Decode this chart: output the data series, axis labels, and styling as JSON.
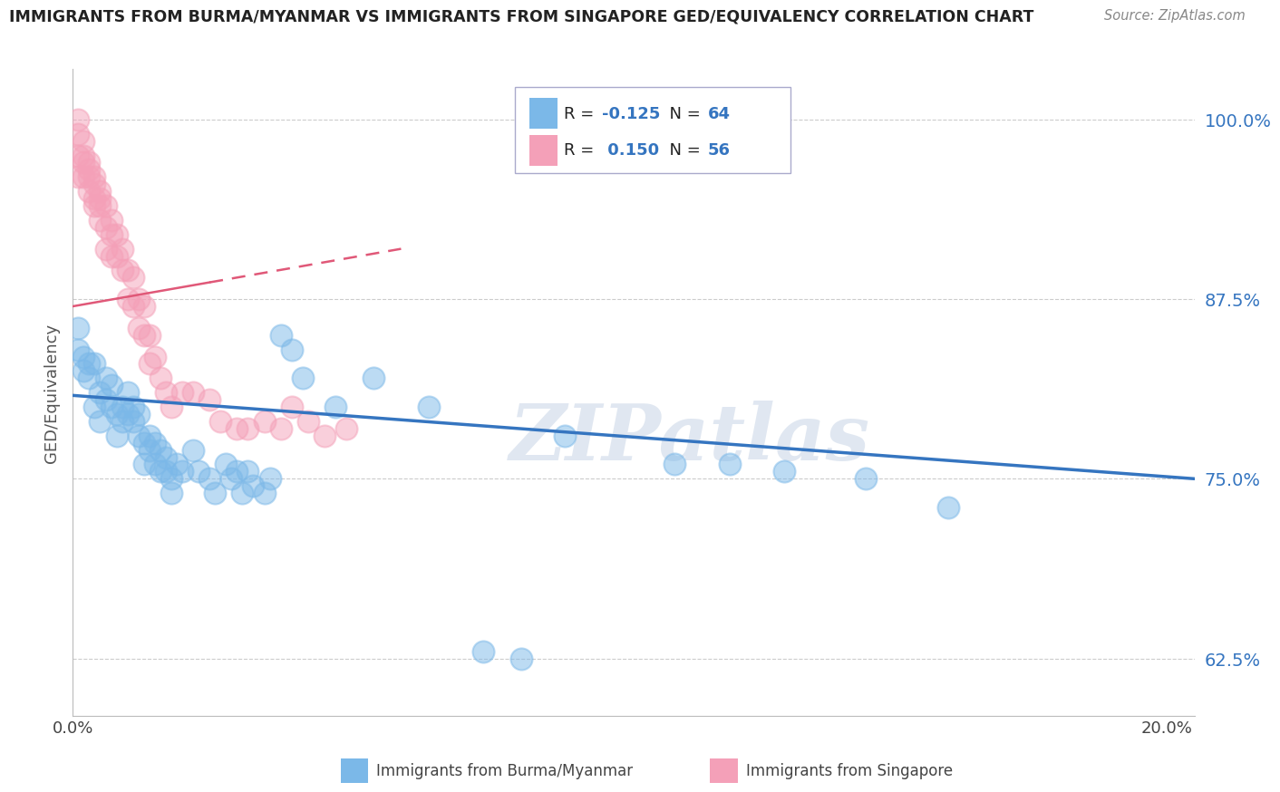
{
  "title": "IMMIGRANTS FROM BURMA/MYANMAR VS IMMIGRANTS FROM SINGAPORE GED/EQUIVALENCY CORRELATION CHART",
  "source": "Source: ZipAtlas.com",
  "ylabel": "GED/Equivalency",
  "y_ticks": [
    0.625,
    0.75,
    0.875,
    1.0
  ],
  "y_tick_labels": [
    "62.5%",
    "75.0%",
    "87.5%",
    "100.0%"
  ],
  "xlim": [
    0.0,
    0.205
  ],
  "ylim": [
    0.585,
    1.035
  ],
  "legend_xlabel_blue": "Immigrants from Burma/Myanmar",
  "legend_xlabel_pink": "Immigrants from Singapore",
  "blue_scatter": [
    [
      0.001,
      0.84
    ],
    [
      0.001,
      0.855
    ],
    [
      0.002,
      0.835
    ],
    [
      0.002,
      0.825
    ],
    [
      0.003,
      0.83
    ],
    [
      0.003,
      0.82
    ],
    [
      0.004,
      0.83
    ],
    [
      0.004,
      0.8
    ],
    [
      0.005,
      0.79
    ],
    [
      0.005,
      0.81
    ],
    [
      0.006,
      0.805
    ],
    [
      0.006,
      0.82
    ],
    [
      0.007,
      0.8
    ],
    [
      0.007,
      0.815
    ],
    [
      0.008,
      0.795
    ],
    [
      0.008,
      0.78
    ],
    [
      0.009,
      0.79
    ],
    [
      0.009,
      0.8
    ],
    [
      0.01,
      0.81
    ],
    [
      0.01,
      0.795
    ],
    [
      0.011,
      0.8
    ],
    [
      0.011,
      0.79
    ],
    [
      0.012,
      0.78
    ],
    [
      0.012,
      0.795
    ],
    [
      0.013,
      0.76
    ],
    [
      0.013,
      0.775
    ],
    [
      0.014,
      0.78
    ],
    [
      0.014,
      0.77
    ],
    [
      0.015,
      0.76
    ],
    [
      0.015,
      0.775
    ],
    [
      0.016,
      0.755
    ],
    [
      0.016,
      0.77
    ],
    [
      0.017,
      0.765
    ],
    [
      0.017,
      0.755
    ],
    [
      0.018,
      0.75
    ],
    [
      0.018,
      0.74
    ],
    [
      0.019,
      0.76
    ],
    [
      0.02,
      0.755
    ],
    [
      0.022,
      0.77
    ],
    [
      0.023,
      0.755
    ],
    [
      0.025,
      0.75
    ],
    [
      0.026,
      0.74
    ],
    [
      0.028,
      0.76
    ],
    [
      0.029,
      0.75
    ],
    [
      0.03,
      0.755
    ],
    [
      0.031,
      0.74
    ],
    [
      0.032,
      0.755
    ],
    [
      0.033,
      0.745
    ],
    [
      0.035,
      0.74
    ],
    [
      0.036,
      0.75
    ],
    [
      0.038,
      0.85
    ],
    [
      0.04,
      0.84
    ],
    [
      0.042,
      0.82
    ],
    [
      0.048,
      0.8
    ],
    [
      0.055,
      0.82
    ],
    [
      0.065,
      0.8
    ],
    [
      0.075,
      0.63
    ],
    [
      0.082,
      0.625
    ],
    [
      0.09,
      0.78
    ],
    [
      0.11,
      0.76
    ],
    [
      0.12,
      0.76
    ],
    [
      0.13,
      0.755
    ],
    [
      0.145,
      0.75
    ],
    [
      0.16,
      0.73
    ]
  ],
  "pink_scatter": [
    [
      0.001,
      0.99
    ],
    [
      0.001,
      1.0
    ],
    [
      0.001,
      0.975
    ],
    [
      0.001,
      0.96
    ],
    [
      0.002,
      0.985
    ],
    [
      0.002,
      0.97
    ],
    [
      0.002,
      0.96
    ],
    [
      0.002,
      0.975
    ],
    [
      0.003,
      0.97
    ],
    [
      0.003,
      0.96
    ],
    [
      0.003,
      0.95
    ],
    [
      0.003,
      0.965
    ],
    [
      0.004,
      0.96
    ],
    [
      0.004,
      0.945
    ],
    [
      0.004,
      0.955
    ],
    [
      0.004,
      0.94
    ],
    [
      0.005,
      0.95
    ],
    [
      0.005,
      0.94
    ],
    [
      0.005,
      0.93
    ],
    [
      0.005,
      0.945
    ],
    [
      0.006,
      0.94
    ],
    [
      0.006,
      0.925
    ],
    [
      0.006,
      0.91
    ],
    [
      0.007,
      0.93
    ],
    [
      0.007,
      0.92
    ],
    [
      0.007,
      0.905
    ],
    [
      0.008,
      0.92
    ],
    [
      0.008,
      0.905
    ],
    [
      0.009,
      0.91
    ],
    [
      0.009,
      0.895
    ],
    [
      0.01,
      0.895
    ],
    [
      0.01,
      0.875
    ],
    [
      0.011,
      0.89
    ],
    [
      0.011,
      0.87
    ],
    [
      0.012,
      0.875
    ],
    [
      0.012,
      0.855
    ],
    [
      0.013,
      0.87
    ],
    [
      0.013,
      0.85
    ],
    [
      0.014,
      0.85
    ],
    [
      0.014,
      0.83
    ],
    [
      0.015,
      0.835
    ],
    [
      0.016,
      0.82
    ],
    [
      0.017,
      0.81
    ],
    [
      0.018,
      0.8
    ],
    [
      0.02,
      0.81
    ],
    [
      0.022,
      0.81
    ],
    [
      0.025,
      0.805
    ],
    [
      0.027,
      0.79
    ],
    [
      0.03,
      0.785
    ],
    [
      0.032,
      0.785
    ],
    [
      0.035,
      0.79
    ],
    [
      0.038,
      0.785
    ],
    [
      0.04,
      0.8
    ],
    [
      0.043,
      0.79
    ],
    [
      0.046,
      0.78
    ],
    [
      0.05,
      0.785
    ]
  ],
  "blue_line_x": [
    0.0,
    0.205
  ],
  "blue_line_y": [
    0.808,
    0.75
  ],
  "pink_line_x": [
    0.0,
    0.06
  ],
  "pink_line_y": [
    0.87,
    0.91
  ],
  "blue_color": "#7bb8e8",
  "pink_color": "#f4a0b8",
  "blue_line_color": "#3575c0",
  "pink_line_color": "#e05878",
  "watermark_text": "ZIPatlas",
  "background_color": "#ffffff"
}
